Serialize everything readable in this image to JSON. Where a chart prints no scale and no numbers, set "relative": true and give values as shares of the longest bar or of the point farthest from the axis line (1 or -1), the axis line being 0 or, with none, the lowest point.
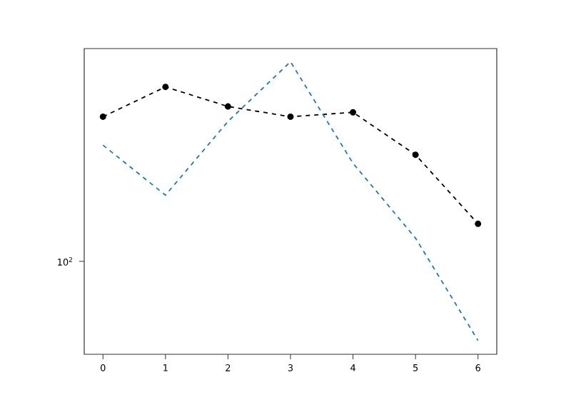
{
  "chart_data": {
    "type": "line",
    "relative": true,
    "x": [
      0,
      1,
      2,
      3,
      4,
      5,
      6
    ],
    "series": [
      {
        "color": "#000000",
        "marker": "circle",
        "values": [
          0.812,
          0.914,
          0.847,
          0.812,
          0.827,
          0.682,
          0.446
        ]
      },
      {
        "color": "#1f77b4",
        "marker": "none",
        "values": [
          0.715,
          0.544,
          0.796,
          1,
          0.653,
          0.397,
          0.047
        ]
      }
    ],
    "line_style": "dashed",
    "annotations": [
      "10$^{2}$"
    ],
    "xlim": [
      -0.3,
      6.3
    ],
    "xticks": [
      0,
      1,
      2,
      3,
      4,
      5,
      6
    ]
  }
}
